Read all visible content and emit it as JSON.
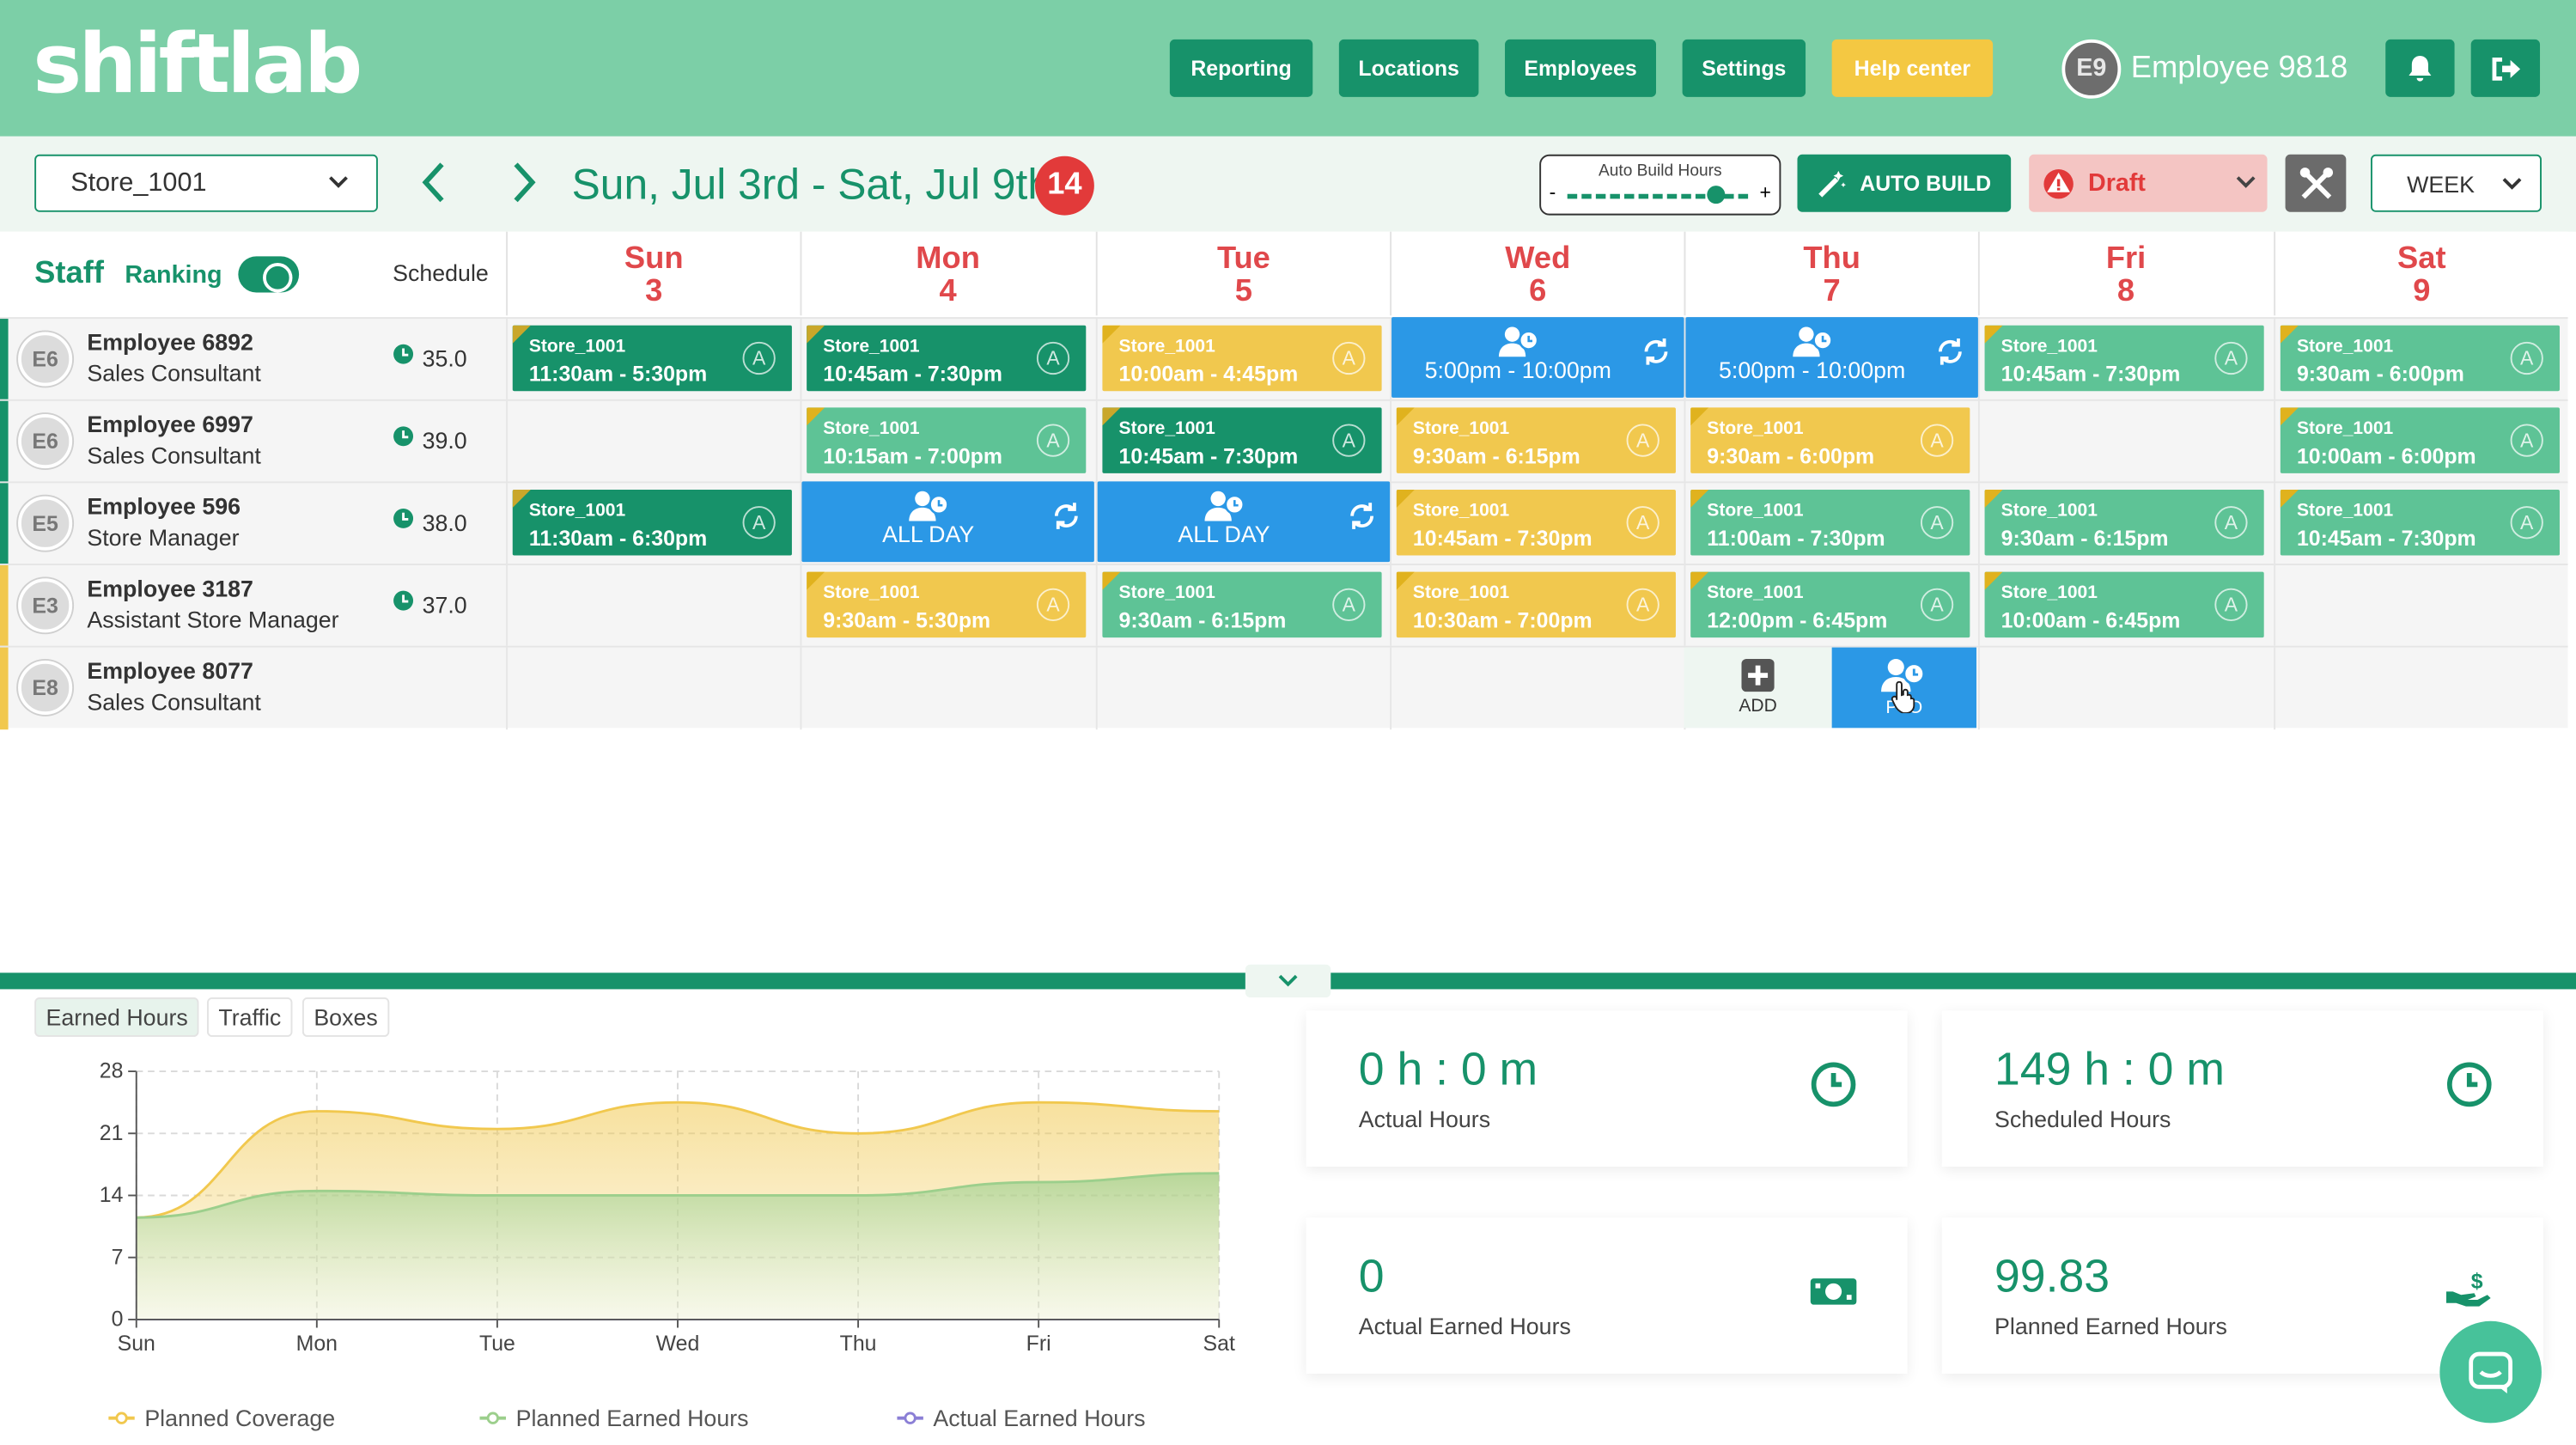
{
  "app": {
    "logo": "shiftlab"
  },
  "nav": {
    "reporting": "Reporting",
    "locations": "Locations",
    "employees": "Employees",
    "settings": "Settings",
    "help": "Help center"
  },
  "user": {
    "initials": "E9",
    "name": "Employee 9818"
  },
  "toolbar": {
    "store": "Store_1001",
    "date_range": "Sun, Jul 3rd - Sat, Jul 9th",
    "count": "14",
    "auto_build_hours_label": "Auto Build Hours",
    "auto_build_hours_value": 0.82,
    "auto_build": "AUTO BUILD",
    "status": "Draft",
    "view": "WEEK"
  },
  "grid": {
    "staff": "Staff",
    "ranking": "Ranking",
    "ranking_on": true,
    "schedule": "Schedule",
    "days": [
      {
        "name": "Sun",
        "num": "3"
      },
      {
        "name": "Mon",
        "num": "4"
      },
      {
        "name": "Tue",
        "num": "5"
      },
      {
        "name": "Wed",
        "num": "6"
      },
      {
        "name": "Thu",
        "num": "7"
      },
      {
        "name": "Fri",
        "num": "8"
      },
      {
        "name": "Sat",
        "num": "9"
      }
    ],
    "employees": [
      {
        "initials": "E6",
        "name": "Employee 6892",
        "role": "Sales Consultant",
        "hours": "35.0",
        "bar": "#17926a"
      },
      {
        "initials": "E6",
        "name": "Employee 6997",
        "role": "Sales Consultant",
        "hours": "39.0",
        "bar": "#17926a"
      },
      {
        "initials": "E5",
        "name": "Employee 596",
        "role": "Store Manager",
        "hours": "38.0",
        "bar": "#17926a"
      },
      {
        "initials": "E3",
        "name": "Employee 3187",
        "role": "Assistant Store Manager",
        "hours": "37.0",
        "bar": "#f1c84e"
      },
      {
        "initials": "E8",
        "name": "Employee 8077",
        "role": "Sales Consultant",
        "hours": "",
        "bar": "#f1c84e"
      }
    ],
    "shifts": [
      {
        "row": 0,
        "day": 0,
        "type": "dark",
        "store": "Store_1001",
        "time": "11:30am - 5:30pm"
      },
      {
        "row": 0,
        "day": 1,
        "type": "dark",
        "store": "Store_1001",
        "time": "10:45am - 7:30pm"
      },
      {
        "row": 0,
        "day": 2,
        "type": "yellow",
        "store": "Store_1001",
        "time": "10:00am - 4:45pm"
      },
      {
        "row": 0,
        "day": 3,
        "type": "blue",
        "time": "5:00pm - 10:00pm"
      },
      {
        "row": 0,
        "day": 4,
        "type": "blue",
        "time": "5:00pm - 10:00pm"
      },
      {
        "row": 0,
        "day": 5,
        "type": "light",
        "store": "Store_1001",
        "time": "10:45am - 7:30pm"
      },
      {
        "row": 0,
        "day": 6,
        "type": "light",
        "store": "Store_1001",
        "time": "9:30am - 6:00pm"
      },
      {
        "row": 1,
        "day": 1,
        "type": "light",
        "store": "Store_1001",
        "time": "10:15am - 7:00pm"
      },
      {
        "row": 1,
        "day": 2,
        "type": "dark",
        "store": "Store_1001",
        "time": "10:45am - 7:30pm"
      },
      {
        "row": 1,
        "day": 3,
        "type": "yellow",
        "store": "Store_1001",
        "time": "9:30am - 6:15pm"
      },
      {
        "row": 1,
        "day": 4,
        "type": "yellow",
        "store": "Store_1001",
        "time": "9:30am - 6:00pm"
      },
      {
        "row": 1,
        "day": 6,
        "type": "light",
        "store": "Store_1001",
        "time": "10:00am - 6:00pm"
      },
      {
        "row": 2,
        "day": 0,
        "type": "dark",
        "store": "Store_1001",
        "time": "11:30am - 6:30pm"
      },
      {
        "row": 2,
        "day": 1,
        "type": "blue",
        "time": "ALL DAY"
      },
      {
        "row": 2,
        "day": 2,
        "type": "blue",
        "time": "ALL DAY"
      },
      {
        "row": 2,
        "day": 3,
        "type": "yellow",
        "store": "Store_1001",
        "time": "10:45am - 7:30pm"
      },
      {
        "row": 2,
        "day": 4,
        "type": "light",
        "store": "Store_1001",
        "time": "11:00am - 7:30pm"
      },
      {
        "row": 2,
        "day": 5,
        "type": "light",
        "store": "Store_1001",
        "time": "9:30am - 6:15pm"
      },
      {
        "row": 2,
        "day": 6,
        "type": "light",
        "store": "Store_1001",
        "time": "10:45am - 7:30pm"
      },
      {
        "row": 3,
        "day": 1,
        "type": "yellow",
        "store": "Store_1001",
        "time": "9:30am - 5:30pm"
      },
      {
        "row": 3,
        "day": 2,
        "type": "light",
        "store": "Store_1001",
        "time": "9:30am - 6:15pm"
      },
      {
        "row": 3,
        "day": 3,
        "type": "yellow",
        "store": "Store_1001",
        "time": "10:30am - 7:00pm"
      },
      {
        "row": 3,
        "day": 4,
        "type": "light",
        "store": "Store_1001",
        "time": "12:00pm - 6:45pm"
      },
      {
        "row": 3,
        "day": 5,
        "type": "light",
        "store": "Store_1001",
        "time": "10:00am - 6:45pm"
      }
    ],
    "add_label": "ADD",
    "pto_label": "PTO"
  },
  "bottom": {
    "tabs": [
      "Earned Hours",
      "Traffic",
      "Boxes"
    ],
    "active_tab": "Earned Hours",
    "stats": [
      {
        "value": "0 h : 0 m",
        "label": "Actual Hours",
        "icon": "clock-icon"
      },
      {
        "value": "149 h : 0 m",
        "label": "Scheduled Hours",
        "icon": "clock-icon"
      },
      {
        "value": "0",
        "label": "Actual Earned Hours",
        "icon": "money-icon"
      },
      {
        "value": "99.83",
        "label": "Planned Earned Hours",
        "icon": "hand-money-icon"
      }
    ]
  },
  "chart_data": {
    "type": "area",
    "categories": [
      "Sun",
      "Mon",
      "Tue",
      "Wed",
      "Thu",
      "Fri",
      "Sat"
    ],
    "ylim": [
      0,
      28
    ],
    "yticks": [
      0,
      7,
      14,
      21,
      28
    ],
    "grid": true,
    "legend_position": "bottom",
    "series": [
      {
        "name": "Planned Coverage",
        "color": "#f1c84e",
        "values": [
          11.5,
          23.5,
          21.5,
          24.5,
          21.0,
          24.5,
          23.5
        ]
      },
      {
        "name": "Planned Earned Hours",
        "color": "#9ccf8c",
        "values": [
          11.5,
          14.5,
          14.0,
          14.0,
          14.0,
          15.5,
          16.5
        ]
      },
      {
        "name": "Actual Earned Hours",
        "color": "#8b7fd6",
        "values": [
          0,
          0,
          0,
          0,
          0,
          0,
          0
        ]
      }
    ]
  }
}
